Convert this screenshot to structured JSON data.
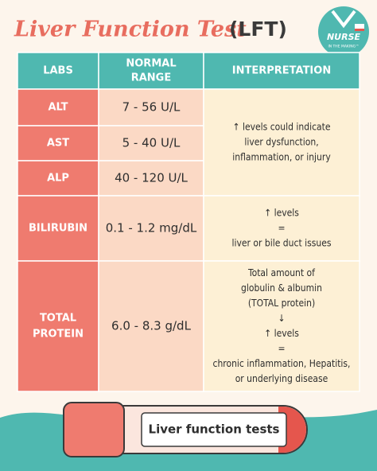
{
  "header": {
    "title": "Liver Function Test",
    "abbreviation": "(LFT)",
    "logo": {
      "name": "NURSE",
      "tagline": "IN THE MAKING™"
    }
  },
  "table": {
    "columns": [
      [
        "LABS"
      ],
      [
        "NORMAL",
        "RANGE"
      ],
      [
        "INTERPRETATION"
      ]
    ],
    "rows": [
      {
        "lab": [
          "ALT"
        ],
        "range": "7 - 56 U/L"
      },
      {
        "lab": [
          "AST"
        ],
        "range": "5 - 40 U/L"
      },
      {
        "lab": [
          "ALP"
        ],
        "range": "40 - 120 U/L"
      },
      {
        "lab": [
          "BILIRUBIN"
        ],
        "range": "0.1 - 1.2 mg/dL"
      },
      {
        "lab": [
          "TOTAL",
          "PROTEIN"
        ],
        "range": "6.0 - 8.3 g/dL"
      }
    ],
    "interpretations": [
      [
        "↑ levels could indicate",
        "liver dysfunction,",
        "inflammation, or injury"
      ],
      [
        "↑ levels",
        "=",
        "liver or bile duct issues"
      ],
      [
        "Total amount of",
        "globulin & albumin",
        "(TOTAL protein)",
        "↓",
        "↑ levels",
        "=",
        "chronic inflammation, Hepatitis,",
        "or underlying disease"
      ]
    ]
  },
  "tube_label": "Liver function tests"
}
